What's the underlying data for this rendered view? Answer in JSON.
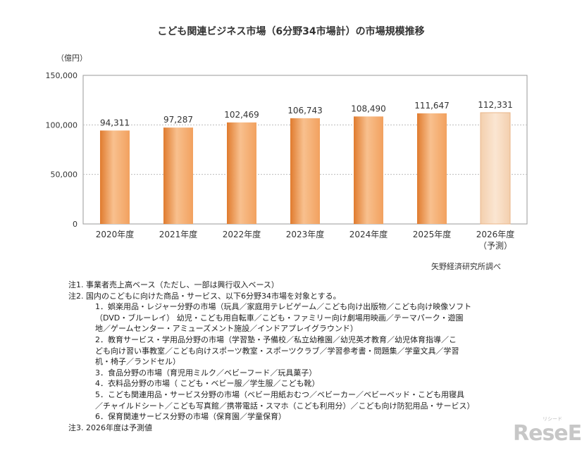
{
  "chart_data": {
    "type": "bar",
    "title": "こども関連ビジネス市場（6分野34市場計）の市場規模推移",
    "unit_label": "（億円）",
    "categories": [
      "2020年度",
      "2021年度",
      "2022年度",
      "2023年度",
      "2024年度",
      "2025年度",
      "2026年度"
    ],
    "category_sublabels": [
      "",
      "",
      "",
      "",
      "",
      "",
      "（予測）"
    ],
    "values": [
      94311,
      97287,
      102469,
      106743,
      108490,
      111647,
      112331
    ],
    "data_labels": [
      "94,311",
      "97,287",
      "102,469",
      "106,743",
      "108,490",
      "111,647",
      "112,331"
    ],
    "forecast_index": 6,
    "ylim": [
      0,
      150000
    ],
    "yticks": [
      0,
      50000,
      100000,
      150000
    ],
    "ytick_labels": [
      "0",
      "50,000",
      "100,000",
      "150,000"
    ],
    "gridlines": true,
    "colors": {
      "bar": "#f2a15f",
      "bar_dark": "#e07b2e",
      "bar_light": "#f8c08e",
      "forecast": "#f8dcc0",
      "grid": "#bdbdbd"
    }
  },
  "source": "矢野経済研究所調べ",
  "notes": {
    "n1": "注1. 事業者売上高ベース（ただし、一部は興行収入ベース）",
    "n2": "注2. 国内のこどもに向けた商品・サービス、以下6分野34市場を対象とする。",
    "items": [
      [
        "1．娯楽用品・レジャー分野の市場（玩具／家庭用テレビゲーム／こども向け出版物／こども向け映像ソフト",
        "（DVD・ブルーレイ） 幼児・こども用自転車／こども・ファミリー向け劇場用映画／テーマパーク・遊園",
        "地／ゲームセンター・アミューズメント施設／インドアプレイグラウンド）"
      ],
      [
        "2．教育サービス・学用品分野の市場（学習塾・予備校／私立幼稚園／幼児英才教育／幼児体育指導／こ",
        "ども向け習い事教室／こども向けスポーツ教室・スポーツクラブ／学習参考書・問題集／学童文具／学習",
        "机・椅子／ランドセル）"
      ],
      [
        "3．食品分野の市場（育児用ミルク／ベビーフード／玩具菓子）"
      ],
      [
        "4．衣料品分野の市場（ こども・ベビー服／学生服／こども靴）"
      ],
      [
        "5．こども関連用品・サービス分野の市場（ベビー用紙おむつ／ベビーカー／ベビーベッド・こども用寝具",
        "／チャイルドシート／こども写真館／携帯電話・スマホ（こども利用分）／こども向け防犯用品・サービス）"
      ],
      [
        "6．保育関連サービス分野の市場（保育園／学童保育）"
      ]
    ],
    "n3": "注3. 2026年度は予測値"
  },
  "logo": {
    "text": "ReseEd",
    "ruby": "リシード"
  }
}
